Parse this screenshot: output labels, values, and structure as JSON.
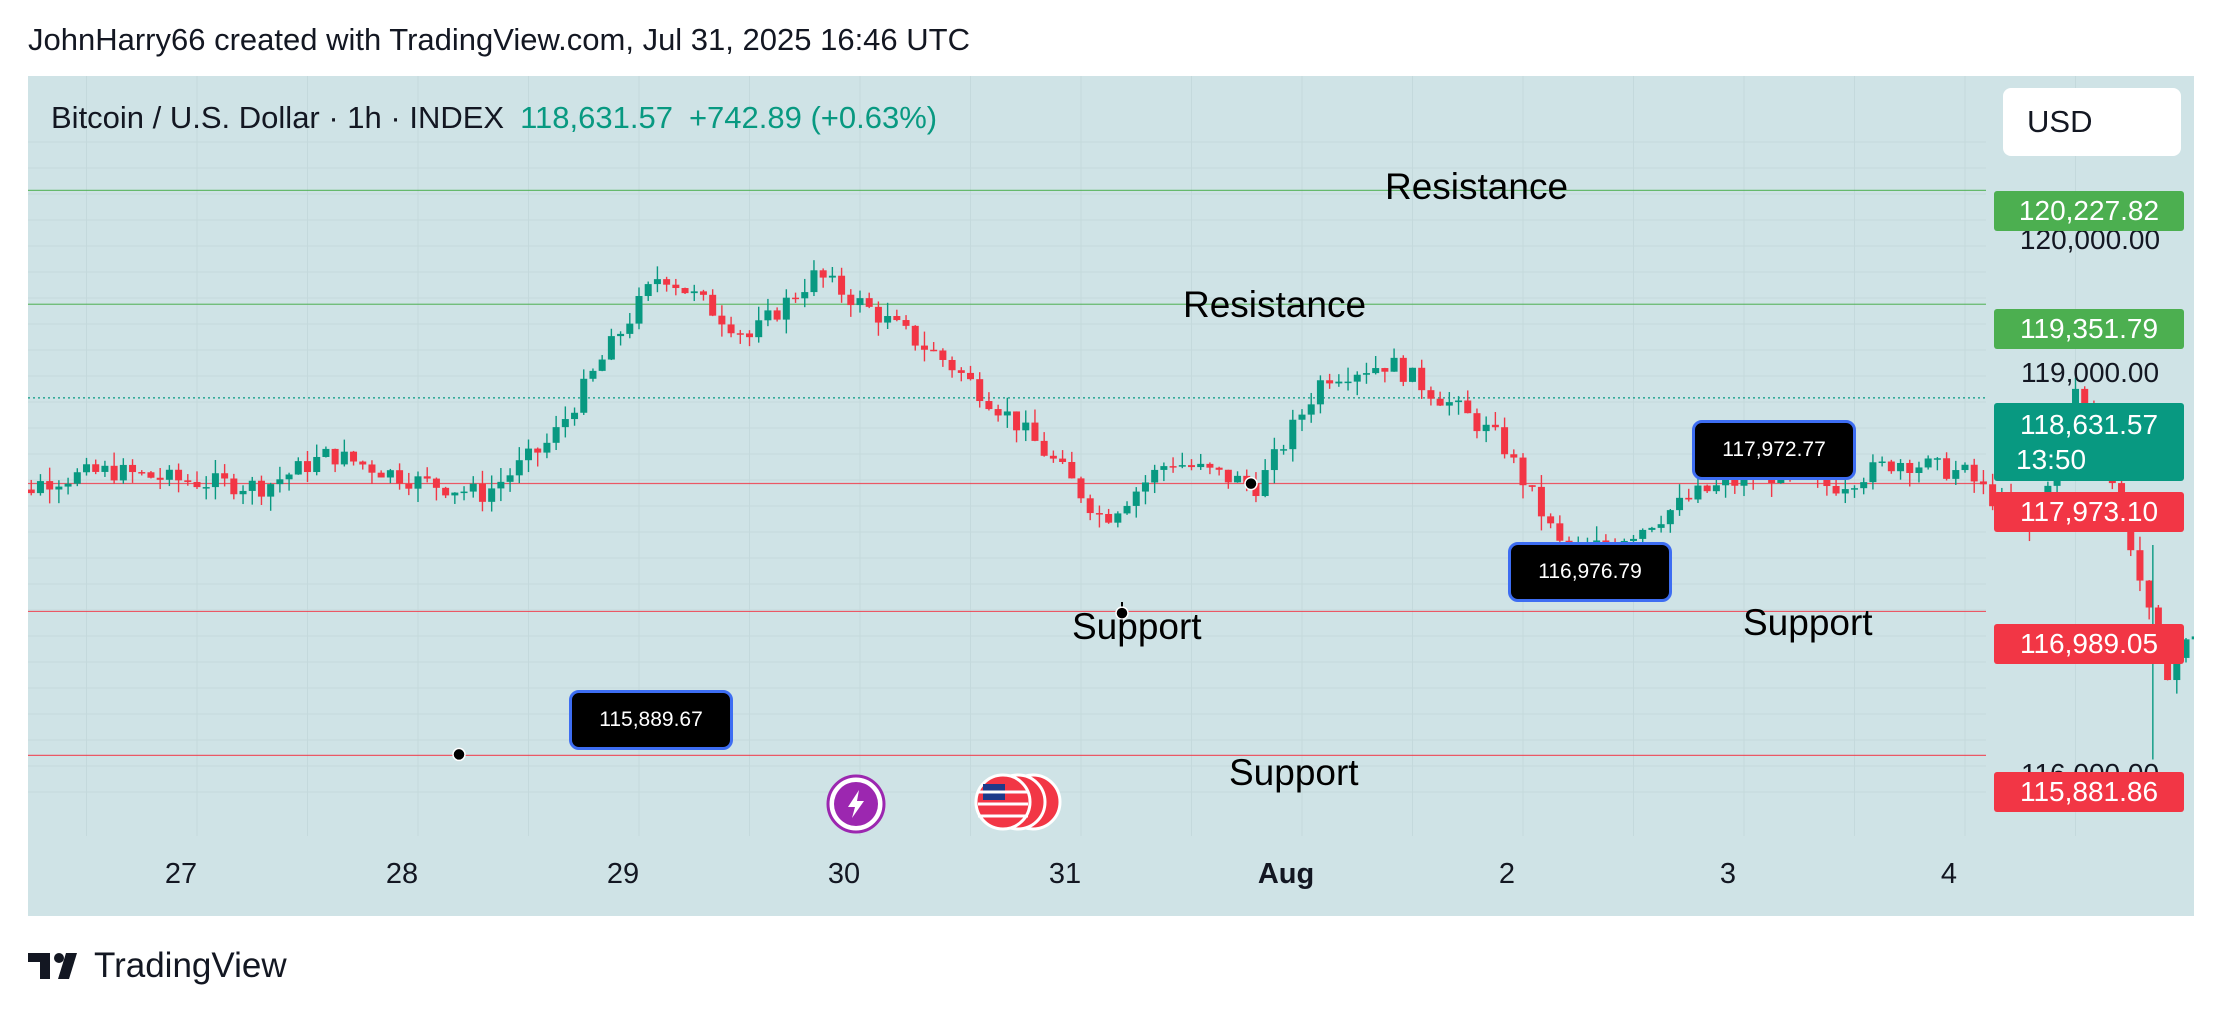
{
  "header": {
    "attribution": "JohnHarry66 created with TradingView.com, Jul 31, 2025 16:46 UTC"
  },
  "symbol": {
    "name": "Bitcoin / U.S. Dollar · 1h · INDEX",
    "last_price": "118,631.57",
    "change": "+742.89 (+0.63%)"
  },
  "currency": "USD",
  "price_tags": {
    "resistance_top": "120,227.82",
    "resistance_mid": "119,351.79",
    "current_price": "118,631.57",
    "countdown": "13:50",
    "support_top": "117,973.10",
    "support_mid": "116,989.05",
    "support_low": "115,881.86"
  },
  "axis": {
    "y_120000": "120,000.00",
    "y_119000": "119,000.00",
    "y_116000": "116,000.00"
  },
  "x_ticks": [
    "27",
    "28",
    "29",
    "30",
    "31",
    "Aug",
    "2",
    "3",
    "4"
  ],
  "annotations": {
    "resistance_upper": "Resistance",
    "resistance_lower": "Resistance",
    "support_left": "Support",
    "support_right": "Support",
    "support_bottom": "Support"
  },
  "callouts": {
    "c1": "115,889.67",
    "c2": "116,976.79",
    "c3": "117,972.77"
  },
  "footer": {
    "brand": "TradingView"
  },
  "colors": {
    "up": "#089981",
    "down": "#f23645",
    "resistance_line": "#4caf50",
    "support_line": "#f23645",
    "chart_bg": "#cfe3e6"
  },
  "chart_data": {
    "type": "candlestick",
    "interval": "1h",
    "x_range": [
      "Jul 26",
      "Aug 4"
    ],
    "ylim": [
      115600,
      120600
    ],
    "horizontal_levels": [
      120227.82,
      119351.79,
      117973.1,
      116989.05,
      115881.86
    ],
    "current_price": 118631.57,
    "close_path": [
      [
        0.0,
        117700
      ],
      [
        0.3,
        117990
      ],
      [
        0.6,
        118070
      ],
      [
        0.9,
        118000
      ],
      [
        1.3,
        117950
      ],
      [
        1.6,
        118200
      ],
      [
        2.0,
        117990
      ],
      [
        2.3,
        117890
      ],
      [
        2.6,
        118300
      ],
      [
        2.9,
        119100
      ],
      [
        3.1,
        119600
      ],
      [
        3.3,
        119350
      ],
      [
        3.5,
        119100
      ],
      [
        3.8,
        119580
      ],
      [
        4.1,
        119250
      ],
      [
        4.4,
        118900
      ],
      [
        4.7,
        118450
      ],
      [
        4.9,
        118100
      ],
      [
        5.1,
        117700
      ],
      [
        5.4,
        118150
      ],
      [
        5.8,
        117950
      ],
      [
        6.1,
        118800
      ],
      [
        6.4,
        118900
      ],
      [
        6.7,
        118550
      ],
      [
        6.9,
        118300
      ],
      [
        7.2,
        117400
      ],
      [
        7.5,
        117600
      ],
      [
        7.8,
        117900
      ],
      [
        8.1,
        118050
      ],
      [
        8.4,
        117950
      ],
      [
        8.7,
        118150
      ],
      [
        9.0,
        118050
      ],
      [
        9.3,
        117600
      ],
      [
        9.5,
        118700
      ],
      [
        9.7,
        117850
      ],
      [
        9.9,
        116500
      ],
      [
        10.2,
        117200
      ],
      [
        10.5,
        117900
      ],
      [
        10.8,
        118400
      ],
      [
        11.2,
        118550
      ],
      [
        11.5,
        118700
      ],
      [
        11.9,
        118650
      ],
      [
        12.2,
        118400
      ],
      [
        12.5,
        117980
      ],
      [
        12.8,
        118631
      ]
    ]
  }
}
